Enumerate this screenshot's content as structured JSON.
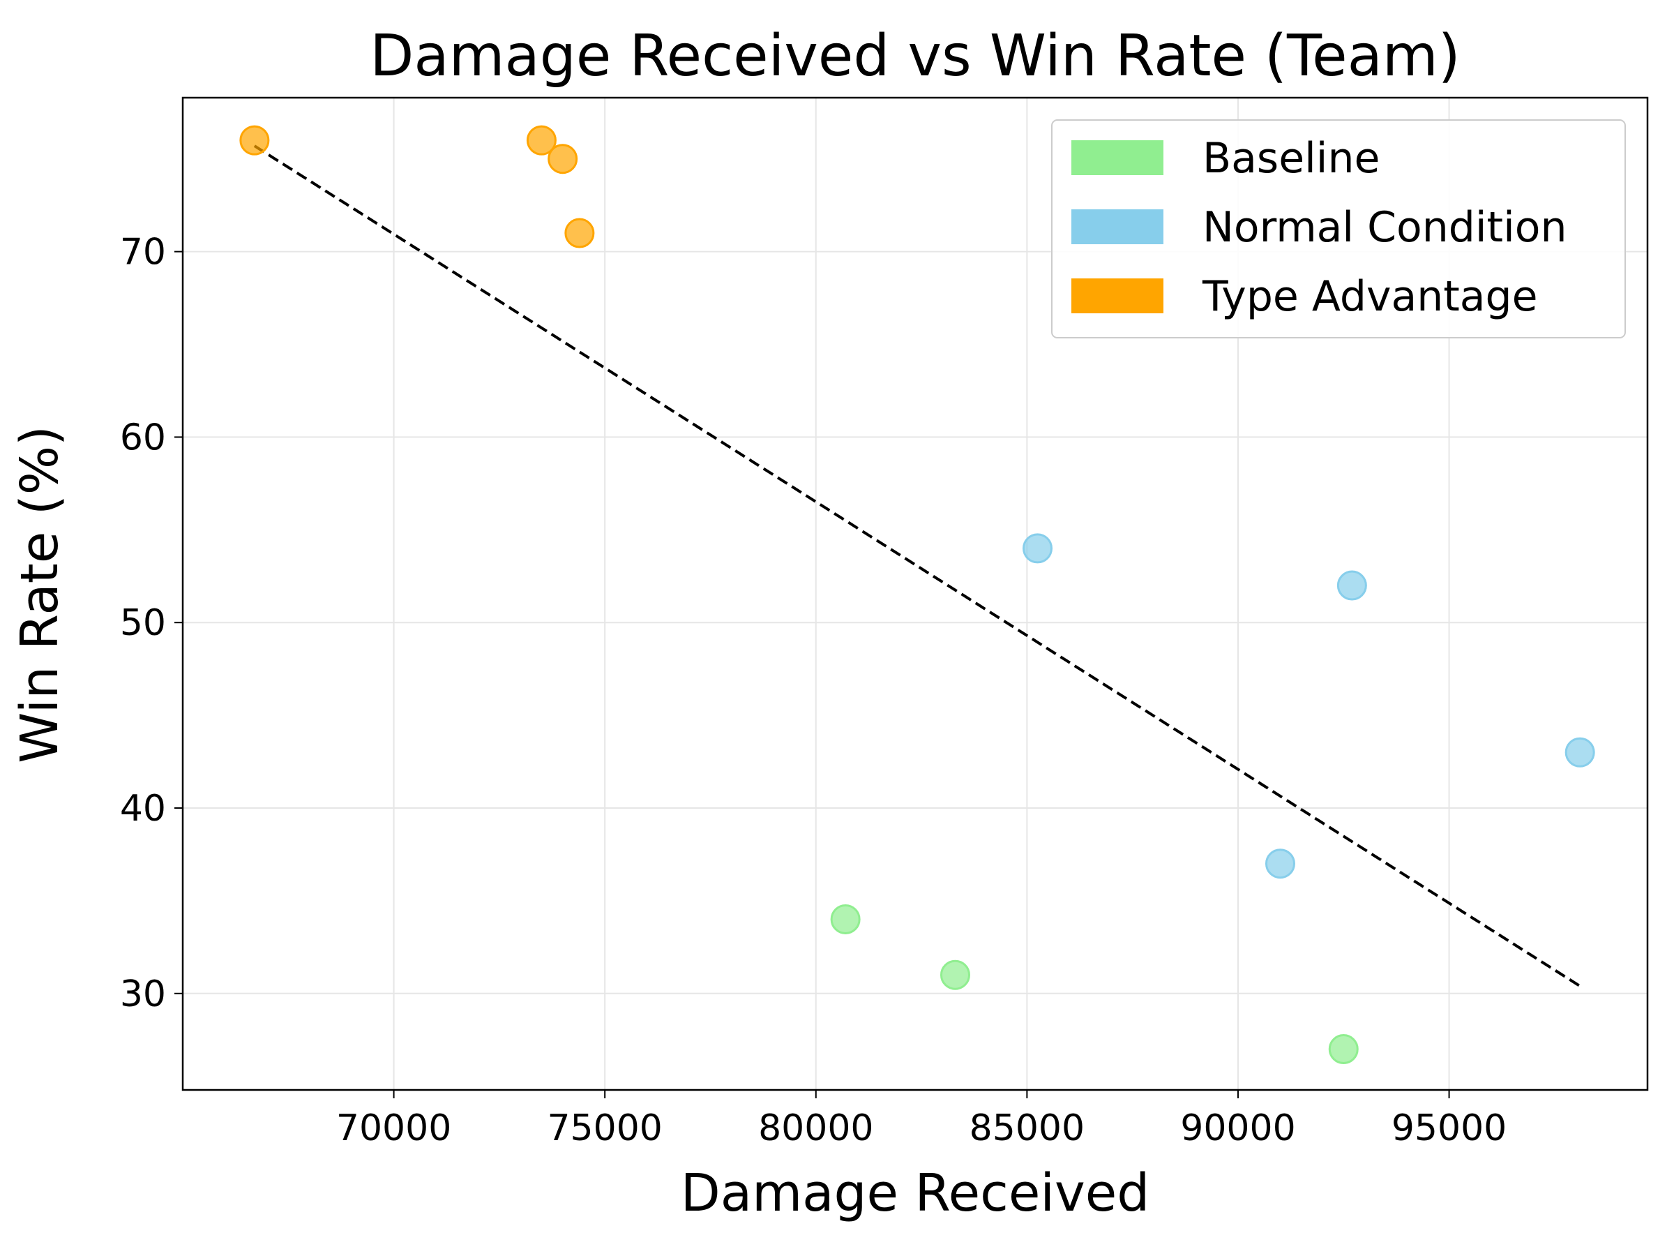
{
  "chart_data": {
    "type": "scatter",
    "title": "Damage Received vs Win Rate (Team)",
    "xlabel": "Damage Received",
    "ylabel": "Win Rate (%)",
    "xlim": [
      65000,
      99700
    ],
    "ylim": [
      24.8,
      78.3
    ],
    "x_ticks": [
      70000,
      75000,
      80000,
      85000,
      90000,
      95000
    ],
    "y_ticks": [
      30,
      40,
      50,
      60,
      70
    ],
    "grid": true,
    "legend_position": "top-right",
    "series": [
      {
        "name": "Baseline",
        "color": "#90EE90",
        "points": [
          {
            "x": 80700,
            "y": 34
          },
          {
            "x": 83300,
            "y": 31
          },
          {
            "x": 92500,
            "y": 27
          }
        ]
      },
      {
        "name": "Normal Condition",
        "color": "#87CEEB",
        "points": [
          {
            "x": 85250,
            "y": 54
          },
          {
            "x": 92700,
            "y": 52
          },
          {
            "x": 91000,
            "y": 37
          },
          {
            "x": 98100,
            "y": 43
          }
        ]
      },
      {
        "name": "Type Advantage",
        "color": "#FFA500",
        "points": [
          {
            "x": 66700,
            "y": 76
          },
          {
            "x": 73500,
            "y": 76
          },
          {
            "x": 74000,
            "y": 75
          },
          {
            "x": 74400,
            "y": 71
          }
        ]
      }
    ],
    "trendline": {
      "style": "dashed",
      "color": "#000000",
      "x": [
        66700,
        98100
      ],
      "y": [
        75.7,
        30.4
      ]
    }
  }
}
